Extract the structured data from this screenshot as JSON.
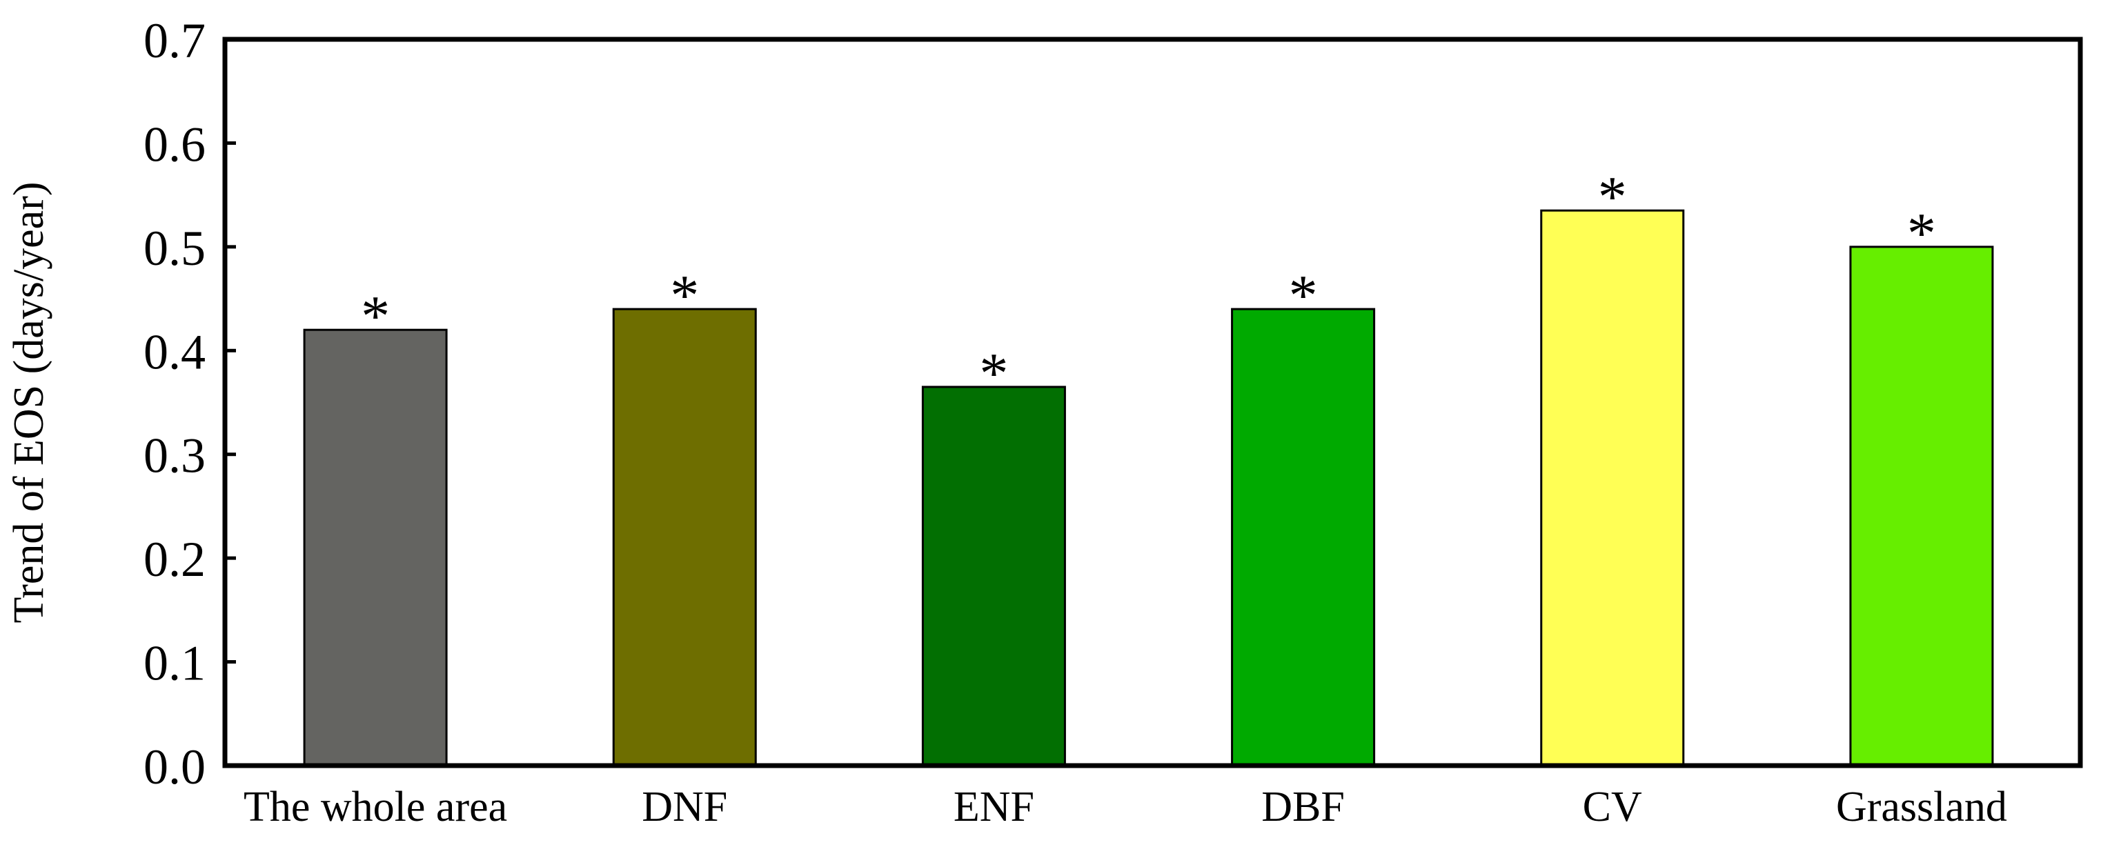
{
  "chart_data": {
    "type": "bar",
    "title": "",
    "xlabel": "",
    "ylabel": "Trend of EOS (days/year)",
    "categories": [
      "The whole area",
      "DNF",
      "ENF",
      "DBF",
      "CV",
      "Grassland"
    ],
    "values": [
      0.42,
      0.44,
      0.365,
      0.44,
      0.535,
      0.5
    ],
    "significance_marks": [
      "*",
      "*",
      "*",
      "*",
      "*",
      "*"
    ],
    "bar_colors": [
      "#646461",
      "#6E6E00",
      "#026F02",
      "#00AA00",
      "#FFFF55",
      "#66EE00"
    ],
    "ylim": [
      0,
      0.7
    ],
    "yticks": [
      "0.0",
      "0.1",
      "0.2",
      "0.3",
      "0.4",
      "0.5",
      "0.6",
      "0.7"
    ],
    "grid": false,
    "legend": "none"
  }
}
